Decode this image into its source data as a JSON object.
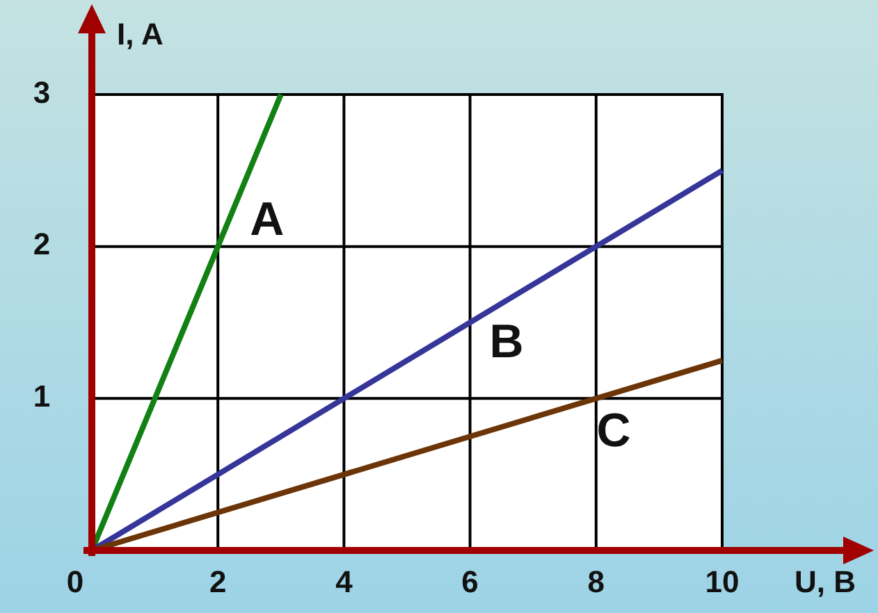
{
  "chart_data": {
    "type": "line",
    "xlabel": "U, B",
    "ylabel": "I, A",
    "xlim": [
      0,
      10
    ],
    "ylim": [
      0,
      3
    ],
    "xticks": [
      0,
      2,
      4,
      6,
      8,
      10
    ],
    "yticks": [
      1,
      2,
      3
    ],
    "grid": true,
    "marker": "none",
    "line_style": "solid",
    "series": [
      {
        "name": "A",
        "color": "#128012",
        "x": [
          0,
          3
        ],
        "values": [
          0,
          3
        ]
      },
      {
        "name": "B",
        "color": "#35359a",
        "x": [
          0,
          10
        ],
        "values": [
          0,
          2.5
        ]
      },
      {
        "name": "C",
        "color": "#6b3508",
        "x": [
          0,
          10
        ],
        "values": [
          0,
          1.25
        ]
      }
    ]
  }
}
